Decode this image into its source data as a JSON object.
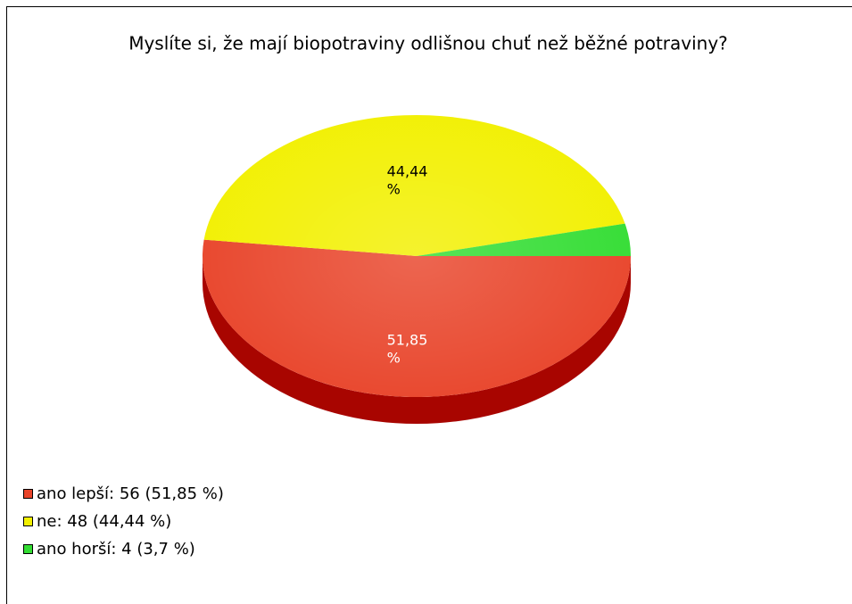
{
  "chart_data": {
    "type": "pie",
    "title": "Myslíte si, že mají biopotraviny odlišnou chuť než běžné potraviny?",
    "legend": [
      "ano lepší: 56 (51,85 %)",
      "ne: 48 (44,44 %)",
      "ano horší: 4 (3,7 %)"
    ],
    "values": [
      51.85,
      44.44,
      3.7
    ],
    "value_labels": [
      "51,85 %",
      "44,44 %",
      null
    ],
    "colors": [
      "#e8442a",
      "#f2f000",
      "#33dd33"
    ],
    "side_colors": [
      "#a80500",
      "#b0aa00",
      "#1f9a1f"
    ],
    "label_colors": [
      "#ffffff",
      "#000000",
      "#000000"
    ],
    "legend_position": "bottom-left"
  }
}
